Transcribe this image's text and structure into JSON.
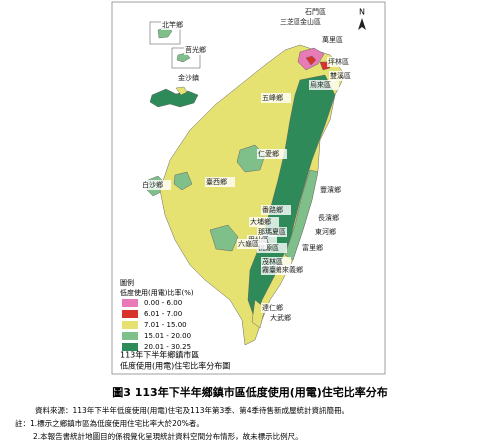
{
  "map": {
    "north": "N",
    "labels": [
      "北竿鄉",
      "莒光鄉",
      "金沙鎮",
      "石門區",
      "三芝區",
      "金山區",
      "萬里區",
      "雙溪區",
      "坪林區",
      "烏來區",
      "五峰鄉",
      "仁愛鄉",
      "豐濱鄉",
      "長濱鄉",
      "臺西鄉",
      "白沙鄉",
      "番路鄉",
      "大埔鄉",
      "那瑪夏區",
      "甲仙區",
      "桃源區",
      "六龜區",
      "茂林區",
      "東河鄉",
      "富里鄉",
      "霧臺鄉",
      "來義鄉",
      "達仁鄉",
      "大武鄉"
    ],
    "legend": {
      "heading": "圖例",
      "title": "低度使用(用電)比率(%)",
      "items": [
        {
          "label": "0.00 - 6.00",
          "color": "#e87ab6"
        },
        {
          "label": "6.01 - 7.00",
          "color": "#d9312b"
        },
        {
          "label": "7.01 - 15.00",
          "color": "#e6e271"
        },
        {
          "label": "15.01 - 20.00",
          "color": "#7fc08a"
        },
        {
          "label": "20.01 - 30.25",
          "color": "#2f8a5a"
        }
      ]
    },
    "map_title": [
      "113年下半年鄉鎮市區",
      "低度使用(用電)住宅比率分布圖"
    ]
  },
  "caption": "圖3  113年下半年鄉鎮市區低度使用(用電)住宅比率分布",
  "notes": [
    "資料來源：113年下半年低度使用(用電)住宅及113年第3季、第4季待售新成屋統計資訊簡冊。",
    "註：1.標示之鄉鎮市區為低度使用住宅比率大於20%者。",
    "2.本報告書統計地圖目的係視覺化呈現統計資料空間分布情形，故未標示比例尺。"
  ]
}
